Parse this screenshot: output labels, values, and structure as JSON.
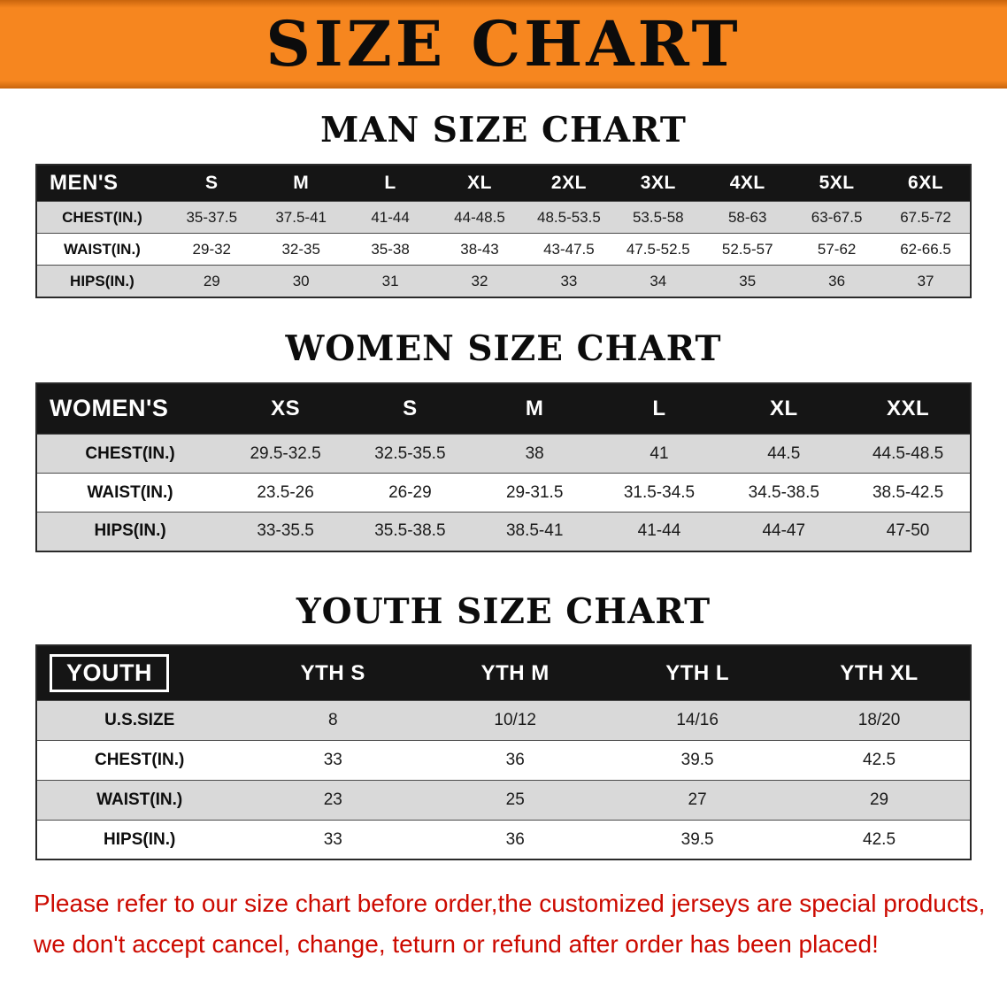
{
  "banner": {
    "title": "SIZE CHART"
  },
  "chart_data": [
    {
      "type": "table",
      "title": "MAN SIZE CHART",
      "columns": [
        "MEN'S",
        "S",
        "M",
        "L",
        "XL",
        "2XL",
        "3XL",
        "4XL",
        "5XL",
        "6XL"
      ],
      "rows": [
        [
          "CHEST(IN.)",
          "35-37.5",
          "37.5-41",
          "41-44",
          "44-48.5",
          "48.5-53.5",
          "53.5-58",
          "58-63",
          "63-67.5",
          "67.5-72"
        ],
        [
          "WAIST(IN.)",
          "29-32",
          "32-35",
          "35-38",
          "38-43",
          "43-47.5",
          "47.5-52.5",
          "52.5-57",
          "57-62",
          "62-66.5"
        ],
        [
          "HIPS(IN.)",
          "29",
          "30",
          "31",
          "32",
          "33",
          "34",
          "35",
          "36",
          "37"
        ]
      ]
    },
    {
      "type": "table",
      "title": "WOMEN SIZE CHART",
      "columns": [
        "WOMEN'S",
        "XS",
        "S",
        "M",
        "L",
        "XL",
        "XXL"
      ],
      "rows": [
        [
          "CHEST(IN.)",
          "29.5-32.5",
          "32.5-35.5",
          "38",
          "41",
          "44.5",
          "44.5-48.5"
        ],
        [
          "WAIST(IN.)",
          "23.5-26",
          "26-29",
          "29-31.5",
          "31.5-34.5",
          "34.5-38.5",
          "38.5-42.5"
        ],
        [
          "HIPS(IN.)",
          "33-35.5",
          "35.5-38.5",
          "38.5-41",
          "41-44",
          "44-47",
          "47-50"
        ]
      ]
    },
    {
      "type": "table",
      "title": "YOUTH SIZE CHART",
      "columns": [
        "YOUTH",
        "YTH S",
        "YTH M",
        "YTH L",
        "YTH XL"
      ],
      "rows": [
        [
          "U.S.SIZE",
          "8",
          "10/12",
          "14/16",
          "18/20"
        ],
        [
          "CHEST(IN.)",
          "33",
          "36",
          "39.5",
          "42.5"
        ],
        [
          "WAIST(IN.)",
          "23",
          "25",
          "27",
          "29"
        ],
        [
          "HIPS(IN.)",
          "33",
          "36",
          "39.5",
          "42.5"
        ]
      ]
    }
  ],
  "disclaimer": {
    "lines": [
      "Please refer to our size chart before order,the customized jerseys are special products,",
      "we don't accept cancel, change, teturn or refund after order has been placed!"
    ]
  },
  "colors": {
    "banner_orange": "#F6861F",
    "header_black": "#151515",
    "row_gray": "#D9D9D9",
    "disclaimer_red": "#CC0A00"
  }
}
